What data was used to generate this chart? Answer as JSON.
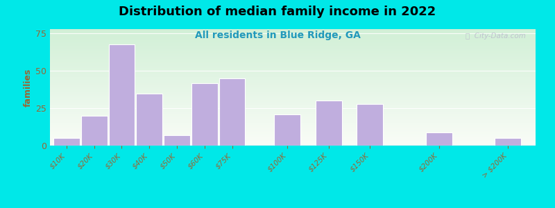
{
  "title": "Distribution of median family income in 2022",
  "subtitle": "All residents in Blue Ridge, GA",
  "ylabel": "families",
  "categories": [
    "$10K",
    "$20K",
    "$30K",
    "$40K",
    "$50K",
    "$60K",
    "$75K",
    "$100K",
    "$125K",
    "$150K",
    "$200K",
    "> $200K"
  ],
  "values": [
    5,
    20,
    68,
    35,
    7,
    42,
    45,
    21,
    30,
    28,
    9,
    5
  ],
  "bar_color": "#c0aede",
  "bar_edge_color": "#ffffff",
  "background_outer": "#00e8e8",
  "title_fontsize": 13,
  "subtitle_fontsize": 10,
  "subtitle_color": "#2299bb",
  "ylabel_color": "#996633",
  "tick_label_color": "#996633",
  "ytick_color": "#996633",
  "ylim": [
    0,
    78
  ],
  "yticks": [
    0,
    25,
    50,
    75
  ],
  "watermark": "ⓘ  City-Data.com",
  "watermark_color": "#bbbbcc",
  "thin_bar_color": "#c0aede",
  "thin_bar_alpha": 0.7
}
